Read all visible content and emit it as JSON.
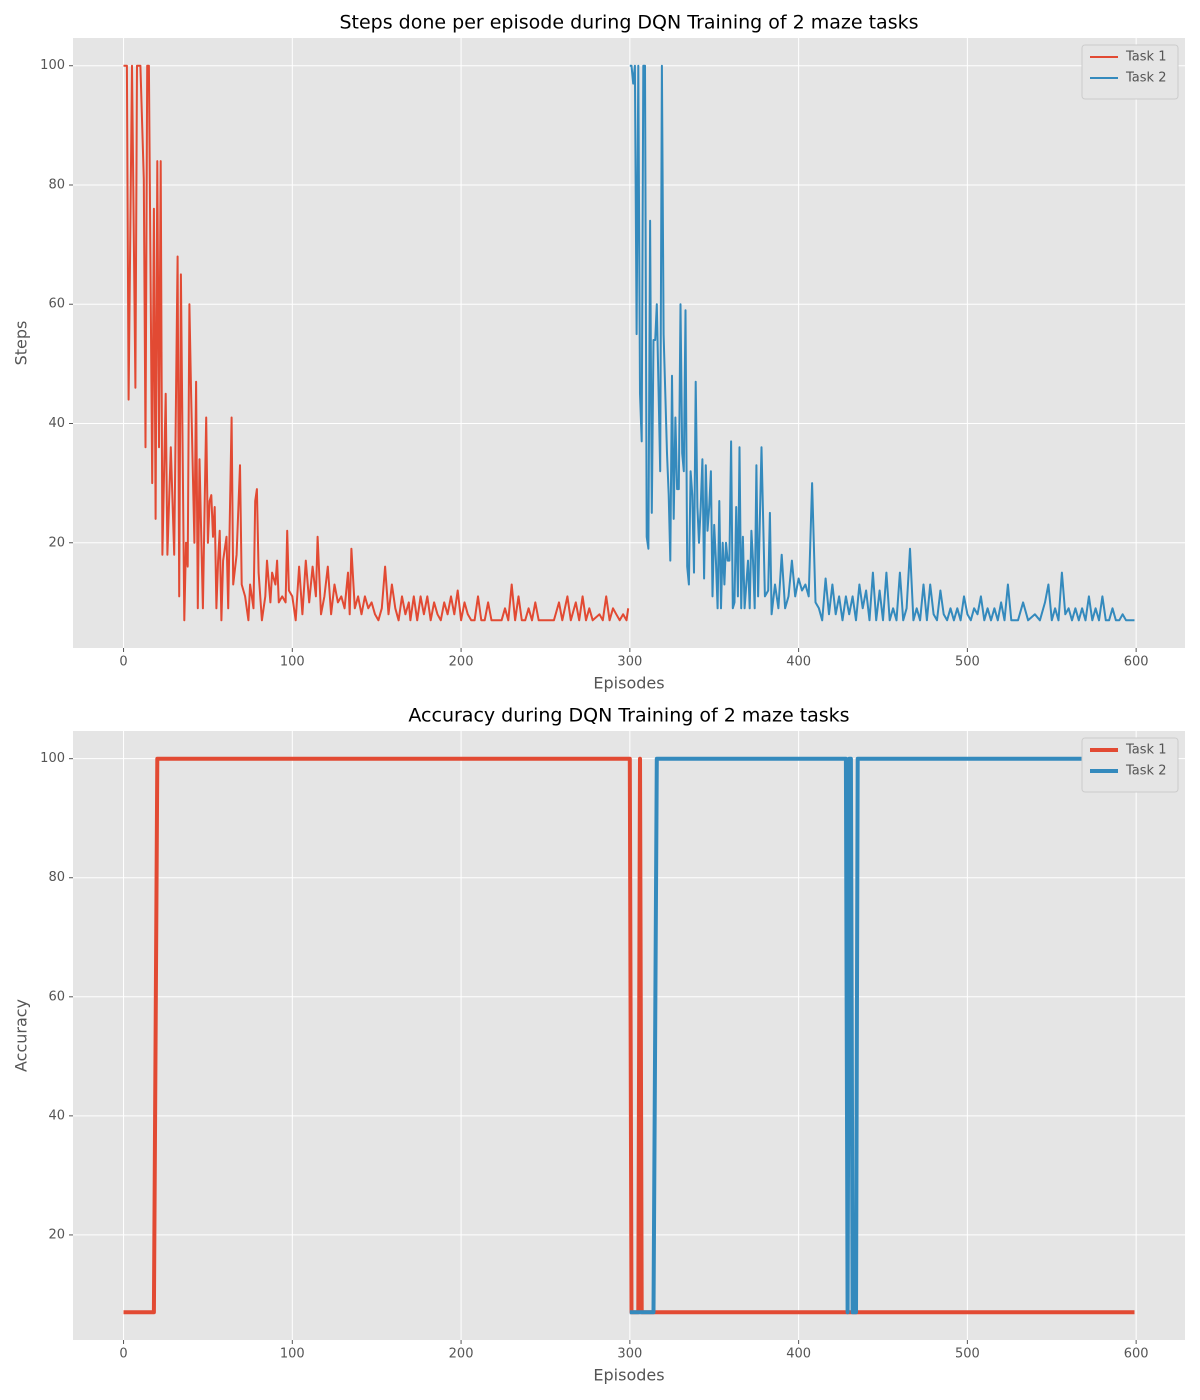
{
  "chart_data": [
    {
      "type": "line",
      "title": "Steps done per episode during DQN Training of 2 maze tasks",
      "xlabel": "Episodes",
      "ylabel": "Steps",
      "xlim": [
        -29.95,
        628.95
      ],
      "ylim": [
        2.35,
        104.65
      ],
      "xticks": [
        0,
        100,
        200,
        300,
        400,
        500,
        600
      ],
      "yticks": [
        20,
        40,
        60,
        80,
        100
      ],
      "grid": true,
      "legend": "upper right",
      "linewidth": 2,
      "series": [
        {
          "name": "Task 1",
          "color": "#E24A33",
          "x": [
            0,
            2,
            3,
            5,
            7,
            8,
            10,
            12,
            13,
            14,
            15,
            17,
            18,
            19,
            20,
            21,
            22,
            23,
            25,
            26,
            28,
            30,
            32,
            33,
            34,
            36,
            37,
            38,
            39,
            40,
            42,
            43,
            44,
            45,
            47,
            48,
            49,
            50,
            51,
            52,
            53,
            54,
            55,
            56,
            57,
            58,
            59,
            61,
            62,
            64,
            65,
            67,
            69,
            70,
            72,
            74,
            75,
            77,
            78,
            79,
            80,
            82,
            84,
            85,
            87,
            88,
            90,
            91,
            92,
            94,
            96,
            97,
            98,
            100,
            102,
            104,
            106,
            108,
            110,
            112,
            114,
            115,
            117,
            119,
            121,
            123,
            125,
            127,
            129,
            131,
            133,
            134,
            135,
            137,
            139,
            141,
            143,
            145,
            147,
            149,
            151,
            153,
            155,
            157,
            159,
            161,
            163,
            165,
            167,
            169,
            170,
            172,
            174,
            176,
            178,
            180,
            182,
            184,
            186,
            188,
            190,
            192,
            194,
            196,
            198,
            200,
            202,
            204,
            206,
            208,
            210,
            212,
            214,
            216,
            218,
            220,
            222,
            224,
            226,
            228,
            230,
            232,
            234,
            236,
            238,
            240,
            242,
            244,
            246,
            250,
            255,
            258,
            260,
            263,
            265,
            268,
            270,
            272,
            274,
            276,
            278,
            282,
            284,
            286,
            288,
            290,
            292,
            294,
            296,
            298,
            299
          ],
          "values": [
            100,
            100,
            44,
            100,
            46,
            100,
            100,
            81,
            36,
            100,
            100,
            30,
            76,
            24,
            84,
            36,
            84,
            18,
            45,
            18,
            36,
            18,
            68,
            11,
            65,
            7,
            20,
            16,
            60,
            45,
            20,
            47,
            9,
            34,
            9,
            26,
            41,
            20,
            27,
            28,
            21,
            26,
            9,
            17,
            22,
            7,
            17,
            21,
            9,
            41,
            13,
            18,
            33,
            13,
            11,
            7,
            13,
            9,
            27,
            29,
            15,
            7,
            11,
            17,
            10,
            15,
            13,
            17,
            10,
            11,
            10,
            22,
            12,
            11,
            7,
            16,
            8,
            17,
            10,
            16,
            11,
            21,
            8,
            11,
            16,
            8,
            13,
            10,
            11,
            9,
            15,
            8,
            19,
            9,
            11,
            8,
            11,
            9,
            10,
            8,
            7,
            9,
            16,
            8,
            13,
            9,
            7,
            11,
            8,
            10,
            7,
            11,
            7,
            11,
            8,
            11,
            7,
            10,
            8,
            7,
            10,
            8,
            11,
            8,
            12,
            7,
            10,
            8,
            7,
            7,
            11,
            7,
            7,
            10,
            7,
            7,
            7,
            7,
            9,
            7,
            13,
            7,
            11,
            7,
            7,
            9,
            7,
            10,
            7,
            7,
            7,
            10,
            7,
            11,
            7,
            10,
            7,
            11,
            7,
            9,
            7,
            8,
            7,
            11,
            7,
            9,
            8,
            7,
            8,
            7,
            9
          ]
        },
        {
          "name": "Task 2",
          "color": "#348ABD",
          "x": [
            300,
            301,
            302,
            303,
            304,
            305,
            306,
            307,
            308,
            309,
            310,
            311,
            312,
            313,
            314,
            315,
            316,
            317,
            318,
            319,
            320,
            321,
            322,
            323,
            324,
            325,
            326,
            327,
            328,
            329,
            330,
            331,
            332,
            333,
            334,
            335,
            336,
            337,
            338,
            339,
            340,
            341,
            342,
            343,
            344,
            345,
            346,
            347,
            348,
            349,
            350,
            351,
            352,
            353,
            354,
            355,
            356,
            357,
            358,
            359,
            360,
            361,
            362,
            363,
            364,
            365,
            366,
            367,
            368,
            369,
            370,
            371,
            372,
            373,
            374,
            375,
            376,
            378,
            380,
            382,
            383,
            384,
            386,
            388,
            390,
            392,
            394,
            396,
            398,
            400,
            402,
            404,
            406,
            408,
            410,
            412,
            414,
            416,
            418,
            420,
            422,
            424,
            426,
            428,
            430,
            432,
            434,
            436,
            438,
            440,
            442,
            444,
            446,
            448,
            450,
            452,
            454,
            456,
            458,
            460,
            462,
            464,
            466,
            468,
            470,
            472,
            474,
            476,
            478,
            480,
            482,
            484,
            486,
            488,
            490,
            492,
            494,
            496,
            498,
            500,
            502,
            504,
            506,
            508,
            510,
            512,
            514,
            516,
            518,
            520,
            522,
            524,
            526,
            530,
            533,
            536,
            540,
            543,
            546,
            548,
            550,
            552,
            554,
            556,
            558,
            560,
            562,
            564,
            566,
            568,
            570,
            572,
            574,
            576,
            578,
            580,
            582,
            584,
            586,
            588,
            590,
            592,
            594,
            596,
            599
          ],
          "values": [
            100,
            100,
            97,
            100,
            55,
            100,
            45,
            37,
            100,
            100,
            21,
            19,
            74,
            25,
            54,
            54,
            60,
            46,
            32,
            100,
            55,
            45,
            35,
            28,
            17,
            48,
            24,
            41,
            29,
            29,
            60,
            35,
            32,
            59,
            16,
            13,
            32,
            28,
            15,
            47,
            26,
            20,
            26,
            34,
            14,
            33,
            22,
            26,
            32,
            11,
            23,
            17,
            9,
            27,
            9,
            20,
            13,
            20,
            17,
            17,
            37,
            9,
            10,
            26,
            11,
            36,
            9,
            21,
            9,
            13,
            17,
            9,
            22,
            17,
            9,
            33,
            11,
            36,
            11,
            12,
            25,
            8,
            13,
            9,
            18,
            9,
            11,
            17,
            11,
            14,
            12,
            13,
            11,
            30,
            10,
            9,
            7,
            14,
            8,
            13,
            8,
            11,
            7,
            11,
            8,
            11,
            7,
            13,
            9,
            12,
            7,
            15,
            7,
            12,
            7,
            15,
            7,
            9,
            7,
            15,
            7,
            9,
            19,
            7,
            9,
            7,
            13,
            7,
            13,
            8,
            7,
            12,
            8,
            7,
            9,
            7,
            9,
            7,
            11,
            8,
            7,
            9,
            8,
            11,
            7,
            9,
            7,
            9,
            7,
            10,
            7,
            13,
            7,
            7,
            10,
            7,
            8,
            7,
            10,
            13,
            7,
            9,
            7,
            15,
            8,
            9,
            7,
            9,
            7,
            9,
            7,
            11,
            7,
            9,
            7,
            11,
            7,
            7,
            9,
            7,
            7,
            8,
            7,
            7,
            7
          ]
        }
      ]
    },
    {
      "type": "line",
      "title": "Accuracy during DQN Training of 2 maze tasks",
      "xlabel": "Episodes",
      "ylabel": "Accuracy",
      "xlim": [
        -29.95,
        628.95
      ],
      "ylim": [
        2.35,
        104.65
      ],
      "xticks": [
        0,
        100,
        200,
        300,
        400,
        500,
        600
      ],
      "yticks": [
        20,
        40,
        60,
        80,
        100
      ],
      "grid": true,
      "legend": "upper right",
      "linewidth": 4,
      "series": [
        {
          "name": "Task 1",
          "color": "#E24A33",
          "x": [
            0,
            18,
            20,
            299,
            300,
            301,
            305,
            306,
            307,
            599
          ],
          "values": [
            7,
            7,
            100,
            100,
            100,
            7,
            7,
            100,
            7,
            7
          ]
        },
        {
          "name": "Task 2",
          "color": "#348ABD",
          "x": [
            300,
            314,
            316,
            428,
            429,
            430,
            431,
            432,
            434,
            435,
            599
          ],
          "values": [
            7,
            7,
            100,
            100,
            7,
            100,
            100,
            7,
            7,
            100,
            100
          ]
        }
      ]
    }
  ]
}
